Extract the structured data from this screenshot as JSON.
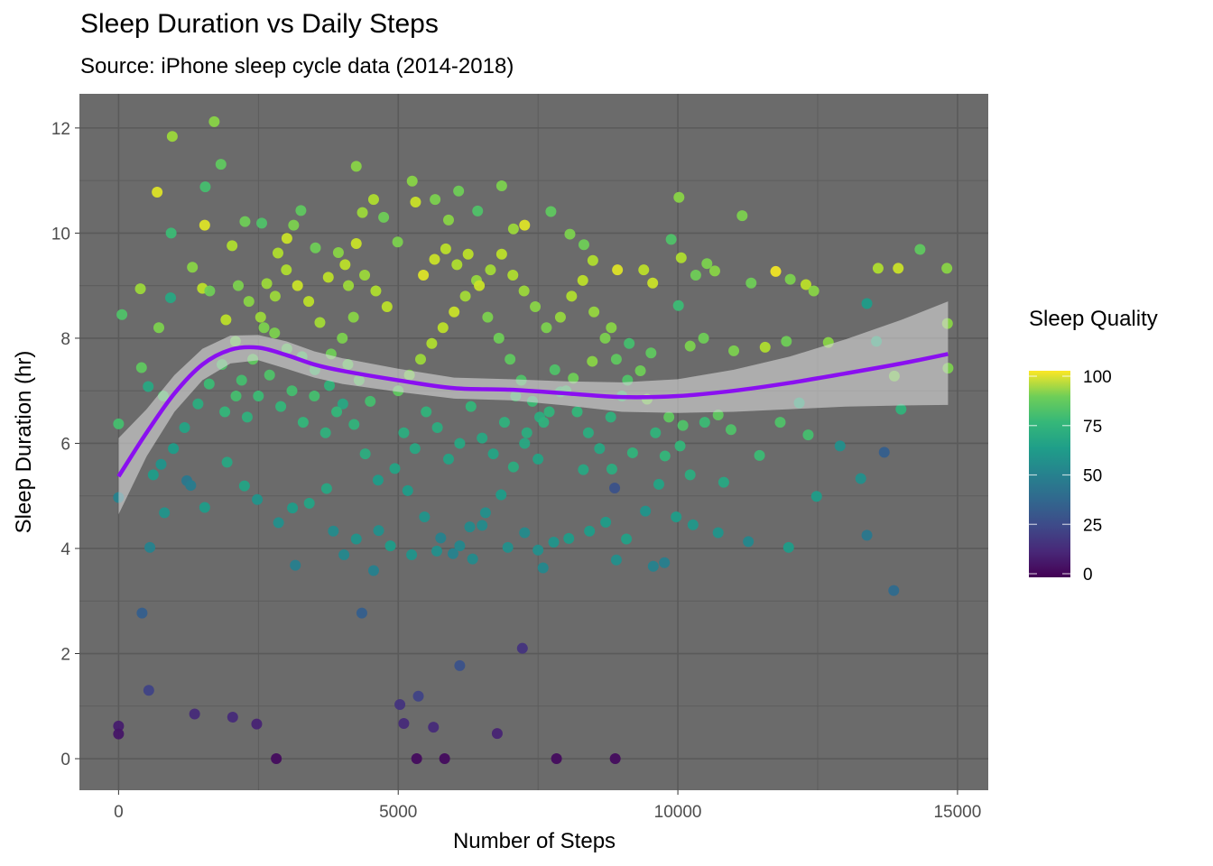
{
  "chart_data": {
    "type": "scatter",
    "title": "Sleep Duration vs Daily Steps",
    "subtitle": "Source: iPhone sleep cycle data (2014-2018)",
    "xlabel": "Number of Steps",
    "ylabel": "Sleep Duration (hr)",
    "xlim": [
      -700,
      15550
    ],
    "ylim": [
      -0.6,
      12.65
    ],
    "x_ticks": [
      0,
      5000,
      10000,
      15000
    ],
    "x_tick_labels": [
      "0",
      "5000",
      "10000",
      "15000"
    ],
    "y_ticks": [
      0,
      2,
      4,
      6,
      8,
      10,
      12
    ],
    "y_tick_labels": [
      "0",
      "2",
      "4",
      "6",
      "8",
      "10",
      "12"
    ],
    "grid": true,
    "panel_background": "#6b6b6b",
    "grid_color": "#5a5a5a",
    "legend": {
      "title": "Sleep Quality",
      "position": "right",
      "type": "colorbar",
      "palette": "viridis",
      "range": [
        0,
        100
      ],
      "ticks": [
        0,
        25,
        50,
        75,
        100
      ],
      "tick_labels": [
        "0",
        "25",
        "50",
        "75",
        "100"
      ]
    },
    "point_columns": [
      "steps",
      "sleep_hours",
      "sleep_quality"
    ],
    "points": [
      [
        0,
        0.62,
        8
      ],
      [
        0,
        0.47,
        6
      ],
      [
        540,
        1.3,
        20
      ],
      [
        420,
        2.77,
        30
      ],
      [
        1360,
        0.85,
        12
      ],
      [
        2040,
        0.79,
        12
      ],
      [
        2470,
        0.66,
        10
      ],
      [
        2820,
        0.0,
        3
      ],
      [
        5330,
        0.0,
        3
      ],
      [
        5830,
        0.0,
        3
      ],
      [
        7830,
        0.0,
        3
      ],
      [
        8880,
        0.0,
        3
      ],
      [
        5030,
        1.03,
        15
      ],
      [
        5100,
        0.67,
        12
      ],
      [
        5360,
        1.19,
        20
      ],
      [
        5630,
        0.6,
        12
      ],
      [
        6770,
        0.48,
        10
      ],
      [
        6100,
        1.77,
        25
      ],
      [
        7220,
        2.1,
        15
      ],
      [
        4350,
        2.77,
        30
      ],
      [
        1220,
        5.29,
        40
      ],
      [
        1290,
        5.2,
        42
      ],
      [
        560,
        4.02,
        45
      ],
      [
        3160,
        3.68,
        43
      ],
      [
        4560,
        3.58,
        44
      ],
      [
        5980,
        3.9,
        45
      ],
      [
        6330,
        3.8,
        48
      ],
      [
        7590,
        3.63,
        47
      ],
      [
        8900,
        3.78,
        50
      ],
      [
        9560,
        3.66,
        45
      ],
      [
        9760,
        3.73,
        43
      ],
      [
        11260,
        4.13,
        47
      ],
      [
        13380,
        4.25,
        40
      ],
      [
        13860,
        3.2,
        35
      ],
      [
        13690,
        5.83,
        30
      ],
      [
        11980,
        4.02,
        55
      ],
      [
        8870,
        5.15,
        25
      ],
      [
        12900,
        5.95,
        50
      ],
      [
        13270,
        5.33,
        50
      ],
      [
        12480,
        4.99,
        55
      ],
      [
        0,
        4.97,
        45
      ],
      [
        0,
        6.37,
        70
      ],
      [
        60,
        8.45,
        72
      ],
      [
        410,
        7.44,
        75
      ],
      [
        530,
        7.08,
        60
      ],
      [
        720,
        8.2,
        80
      ],
      [
        800,
        6.9,
        72
      ],
      [
        390,
        8.94,
        85
      ],
      [
        690,
        10.78,
        95
      ],
      [
        960,
        11.84,
        85
      ],
      [
        1710,
        12.12,
        82
      ],
      [
        1830,
        11.31,
        75
      ],
      [
        1550,
        10.88,
        70
      ],
      [
        1540,
        10.15,
        95
      ],
      [
        940,
        10.0,
        68
      ],
      [
        930,
        8.77,
        60
      ],
      [
        1320,
        9.35,
        82
      ],
      [
        1500,
        8.95,
        90
      ],
      [
        1630,
        8.9,
        78
      ],
      [
        1920,
        8.35,
        90
      ],
      [
        2030,
        9.76,
        88
      ],
      [
        2140,
        9.0,
        80
      ],
      [
        2260,
        10.22,
        78
      ],
      [
        2560,
        10.19,
        72
      ],
      [
        2650,
        9.04,
        85
      ],
      [
        2850,
        9.62,
        88
      ],
      [
        3010,
        9.9,
        92
      ],
      [
        3130,
        10.15,
        80
      ],
      [
        3260,
        10.43,
        75
      ],
      [
        3520,
        9.72,
        78
      ],
      [
        3750,
        9.16,
        90
      ],
      [
        3930,
        9.63,
        82
      ],
      [
        4110,
        9.0,
        85
      ],
      [
        4250,
        11.27,
        82
      ],
      [
        4360,
        10.39,
        85
      ],
      [
        4560,
        10.64,
        88
      ],
      [
        4740,
        10.3,
        78
      ],
      [
        4990,
        9.83,
        80
      ],
      [
        5250,
        10.99,
        82
      ],
      [
        5310,
        10.59,
        92
      ],
      [
        5660,
        10.64,
        80
      ],
      [
        5900,
        10.25,
        82
      ],
      [
        6080,
        10.8,
        78
      ],
      [
        6420,
        10.42,
        72
      ],
      [
        6850,
        10.9,
        80
      ],
      [
        7060,
        10.08,
        85
      ],
      [
        7260,
        10.15,
        95
      ],
      [
        7730,
        10.41,
        75
      ],
      [
        8070,
        9.98,
        80
      ],
      [
        8320,
        9.78,
        78
      ],
      [
        8480,
        9.48,
        88
      ],
      [
        8920,
        9.3,
        95
      ],
      [
        9390,
        9.3,
        90
      ],
      [
        9550,
        9.05,
        92
      ],
      [
        9880,
        9.88,
        72
      ],
      [
        10060,
        9.53,
        88
      ],
      [
        10020,
        10.68,
        82
      ],
      [
        10320,
        9.2,
        78
      ],
      [
        10520,
        9.42,
        80
      ],
      [
        10660,
        9.28,
        82
      ],
      [
        11150,
        10.33,
        80
      ],
      [
        11310,
        9.05,
        78
      ],
      [
        11750,
        9.27,
        98
      ],
      [
        12010,
        9.12,
        80
      ],
      [
        12290,
        9.02,
        90
      ],
      [
        12430,
        8.9,
        82
      ],
      [
        13580,
        9.33,
        88
      ],
      [
        13940,
        9.33,
        92
      ],
      [
        14330,
        9.69,
        75
      ],
      [
        14810,
        9.33,
        82
      ],
      [
        10010,
        8.62,
        68
      ],
      [
        10220,
        7.85,
        80
      ],
      [
        10460,
        8.0,
        78
      ],
      [
        11000,
        7.76,
        80
      ],
      [
        11560,
        7.83,
        88
      ],
      [
        11940,
        7.94,
        78
      ],
      [
        12690,
        7.92,
        82
      ],
      [
        13380,
        8.66,
        55
      ],
      [
        13550,
        7.94,
        62
      ],
      [
        13870,
        7.28,
        80
      ],
      [
        14820,
        8.28,
        82
      ],
      [
        14830,
        7.43,
        80
      ],
      [
        13990,
        6.65,
        65
      ],
      [
        12170,
        6.77,
        62
      ],
      [
        11830,
        6.4,
        72
      ],
      [
        11460,
        5.77,
        68
      ],
      [
        12330,
        6.16,
        70
      ],
      [
        10950,
        6.26,
        72
      ],
      [
        10720,
        6.54,
        75
      ],
      [
        10480,
        6.4,
        68
      ],
      [
        10090,
        6.34,
        72
      ],
      [
        9840,
        6.5,
        75
      ],
      [
        9600,
        6.2,
        65
      ],
      [
        9450,
        6.84,
        80
      ],
      [
        9330,
        7.38,
        78
      ],
      [
        9520,
        7.72,
        75
      ],
      [
        9130,
        7.9,
        70
      ],
      [
        8810,
        8.2,
        82
      ],
      [
        8470,
        7.56,
        82
      ],
      [
        8130,
        7.24,
        78
      ],
      [
        7900,
        6.98,
        68
      ],
      [
        7530,
        6.5,
        62
      ],
      [
        7260,
        6.0,
        60
      ],
      [
        7060,
        5.55,
        62
      ],
      [
        6840,
        5.02,
        55
      ],
      [
        6560,
        4.68,
        50
      ],
      [
        6280,
        4.41,
        48
      ],
      [
        6100,
        4.05,
        47
      ],
      [
        5760,
        4.2,
        45
      ],
      [
        5470,
        4.6,
        52
      ],
      [
        5170,
        5.1,
        55
      ],
      [
        4940,
        5.52,
        58
      ],
      [
        4640,
        5.3,
        55
      ],
      [
        4410,
        5.8,
        62
      ],
      [
        4210,
        6.36,
        65
      ],
      [
        4010,
        6.75,
        60
      ],
      [
        3770,
        7.1,
        65
      ],
      [
        3510,
        7.4,
        70
      ],
      [
        3280,
        7.65,
        72
      ],
      [
        3010,
        7.8,
        75
      ],
      [
        2790,
        8.1,
        80
      ],
      [
        2540,
        8.4,
        85
      ],
      [
        2330,
        8.7,
        82
      ],
      [
        2090,
        7.94,
        78
      ],
      [
        1850,
        7.5,
        72
      ],
      [
        1620,
        7.13,
        68
      ],
      [
        1420,
        6.75,
        62
      ],
      [
        1180,
        6.3,
        58
      ],
      [
        980,
        5.9,
        55
      ],
      [
        760,
        5.6,
        52
      ],
      [
        620,
        5.4,
        55
      ],
      [
        820,
        4.68,
        52
      ],
      [
        1540,
        4.78,
        55
      ],
      [
        1940,
        5.64,
        60
      ],
      [
        2250,
        5.19,
        58
      ],
      [
        2480,
        4.93,
        52
      ],
      [
        2860,
        4.49,
        50
      ],
      [
        3110,
        4.77,
        55
      ],
      [
        3410,
        4.86,
        58
      ],
      [
        3720,
        5.14,
        60
      ],
      [
        3840,
        4.33,
        48
      ],
      [
        4030,
        3.88,
        47
      ],
      [
        4250,
        4.18,
        52
      ],
      [
        4650,
        4.34,
        50
      ],
      [
        4860,
        4.05,
        55
      ],
      [
        5240,
        3.88,
        52
      ],
      [
        5690,
        3.95,
        50
      ],
      [
        6500,
        4.44,
        48
      ],
      [
        6960,
        4.02,
        50
      ],
      [
        7260,
        4.3,
        48
      ],
      [
        7500,
        3.97,
        50
      ],
      [
        7780,
        4.12,
        52
      ],
      [
        8050,
        4.19,
        55
      ],
      [
        8420,
        4.33,
        55
      ],
      [
        8710,
        4.5,
        55
      ],
      [
        9080,
        4.18,
        57
      ],
      [
        9420,
        4.71,
        52
      ],
      [
        9660,
        5.22,
        58
      ],
      [
        9970,
        4.6,
        55
      ],
      [
        10270,
        4.45,
        53
      ],
      [
        10720,
        4.3,
        52
      ],
      [
        8310,
        5.5,
        60
      ],
      [
        8820,
        5.51,
        62
      ],
      [
        9190,
        5.82,
        65
      ],
      [
        9770,
        5.76,
        66
      ],
      [
        10220,
        5.4,
        62
      ],
      [
        10820,
        5.26,
        60
      ],
      [
        10040,
        5.95,
        66
      ],
      [
        5000,
        7.0,
        75
      ],
      [
        5200,
        7.3,
        80
      ],
      [
        5400,
        7.6,
        85
      ],
      [
        5600,
        7.9,
        88
      ],
      [
        5800,
        8.2,
        90
      ],
      [
        6000,
        8.5,
        92
      ],
      [
        6200,
        8.8,
        86
      ],
      [
        6400,
        9.1,
        84
      ],
      [
        6600,
        8.4,
        80
      ],
      [
        6800,
        8.0,
        78
      ],
      [
        7000,
        7.6,
        75
      ],
      [
        7200,
        7.2,
        72
      ],
      [
        7400,
        6.8,
        68
      ],
      [
        7600,
        6.4,
        64
      ],
      [
        4800,
        8.6,
        90
      ],
      [
        4600,
        8.9,
        88
      ],
      [
        4400,
        9.2,
        85
      ],
      [
        4200,
        8.4,
        82
      ],
      [
        4000,
        8.0,
        80
      ],
      [
        3800,
        7.7,
        78
      ],
      [
        3600,
        8.3,
        86
      ],
      [
        3400,
        8.7,
        90
      ],
      [
        3200,
        9.0,
        92
      ],
      [
        3000,
        9.3,
        88
      ],
      [
        2800,
        8.8,
        85
      ],
      [
        2600,
        8.2,
        80
      ],
      [
        2400,
        7.6,
        75
      ],
      [
        2200,
        7.2,
        70
      ],
      [
        5100,
        6.2,
        62
      ],
      [
        5300,
        5.9,
        60
      ],
      [
        5500,
        6.6,
        65
      ],
      [
        5700,
        6.3,
        62
      ],
      [
        5900,
        5.7,
        58
      ],
      [
        6100,
        6.0,
        60
      ],
      [
        6300,
        6.7,
        66
      ],
      [
        6500,
        6.1,
        60
      ],
      [
        6700,
        5.8,
        58
      ],
      [
        6900,
        6.4,
        64
      ],
      [
        7100,
        6.9,
        70
      ],
      [
        7300,
        6.2,
        62
      ],
      [
        7500,
        5.7,
        58
      ],
      [
        7700,
        6.6,
        65
      ],
      [
        4500,
        6.8,
        70
      ],
      [
        4300,
        7.2,
        74
      ],
      [
        4100,
        7.5,
        76
      ],
      [
        3900,
        6.6,
        66
      ],
      [
        3700,
        6.2,
        64
      ],
      [
        3500,
        6.9,
        70
      ],
      [
        3300,
        6.4,
        66
      ],
      [
        3100,
        7.0,
        70
      ],
      [
        2900,
        6.7,
        66
      ],
      [
        2700,
        7.3,
        72
      ],
      [
        2500,
        6.9,
        68
      ],
      [
        2300,
        6.5,
        64
      ],
      [
        2100,
        6.9,
        70
      ],
      [
        1900,
        6.6,
        66
      ],
      [
        7900,
        8.4,
        84
      ],
      [
        8100,
        8.8,
        88
      ],
      [
        8300,
        9.1,
        90
      ],
      [
        8500,
        8.5,
        84
      ],
      [
        8700,
        8.0,
        80
      ],
      [
        8900,
        7.6,
        75
      ],
      [
        9100,
        7.2,
        72
      ],
      [
        7800,
        7.4,
        72
      ],
      [
        8000,
        7.0,
        70
      ],
      [
        8200,
        6.6,
        66
      ],
      [
        8400,
        6.2,
        62
      ],
      [
        8600,
        5.9,
        60
      ],
      [
        8800,
        6.5,
        64
      ],
      [
        9000,
        6.9,
        68
      ],
      [
        5450,
        9.2,
        95
      ],
      [
        5650,
        9.5,
        92
      ],
      [
        5850,
        9.7,
        90
      ],
      [
        6050,
        9.4,
        88
      ],
      [
        6250,
        9.6,
        90
      ],
      [
        6450,
        9.0,
        92
      ],
      [
        6650,
        9.3,
        86
      ],
      [
        6850,
        9.6,
        90
      ],
      [
        7050,
        9.2,
        88
      ],
      [
        7250,
        8.9,
        85
      ],
      [
        7450,
        8.6,
        82
      ],
      [
        7650,
        8.2,
        80
      ],
      [
        4250,
        9.8,
        92
      ],
      [
        4050,
        9.4,
        90
      ]
    ],
    "smooth": {
      "method": "loess",
      "color": "#8a0ff0",
      "ribbon_color": "#d9d9d9",
      "x": [
        0,
        500,
        1000,
        1500,
        2000,
        2500,
        3000,
        3500,
        4000,
        5000,
        6000,
        7000,
        8000,
        9000,
        10000,
        11000,
        12000,
        13000,
        14000,
        14830
      ],
      "y": [
        5.37,
        6.2,
        6.95,
        7.5,
        7.78,
        7.82,
        7.68,
        7.5,
        7.38,
        7.2,
        7.05,
        7.02,
        6.95,
        6.88,
        6.9,
        7.0,
        7.15,
        7.33,
        7.52,
        7.7
      ],
      "ymin": [
        4.65,
        5.75,
        6.6,
        7.2,
        7.52,
        7.58,
        7.42,
        7.25,
        7.13,
        6.98,
        6.85,
        6.82,
        6.72,
        6.6,
        6.58,
        6.6,
        6.65,
        6.7,
        6.72,
        6.73
      ],
      "ymax": [
        6.1,
        6.65,
        7.3,
        7.8,
        8.05,
        8.06,
        7.94,
        7.75,
        7.62,
        7.42,
        7.25,
        7.22,
        7.18,
        7.16,
        7.22,
        7.4,
        7.65,
        7.98,
        8.35,
        8.7
      ]
    }
  }
}
